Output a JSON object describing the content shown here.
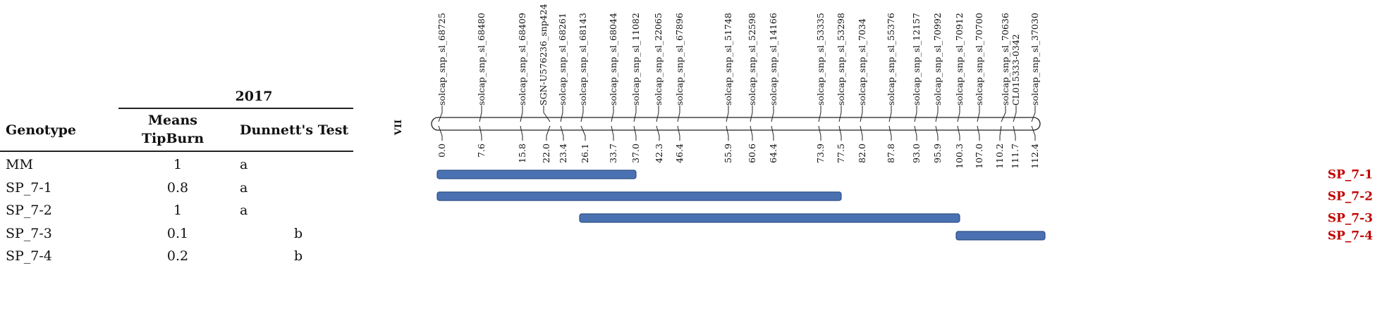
{
  "table": {
    "year": "2017",
    "headers": {
      "genotype": "Genotype",
      "means_line1": "Means",
      "means_line2": "TipBurn",
      "dunnett": "Dunnett's Test"
    },
    "rows": [
      {
        "genotype": "MM",
        "mean": "1",
        "dunnett": "a"
      },
      {
        "genotype": "SP_7-1",
        "mean": "0.8",
        "dunnett": "a"
      },
      {
        "genotype": "SP_7-2",
        "mean": "1",
        "dunnett": "a"
      },
      {
        "genotype": "SP_7-3",
        "mean": "0.1",
        "dunnett": "b"
      },
      {
        "genotype": "SP_7-4",
        "mean": "0.2",
        "dunnett": "b"
      }
    ]
  },
  "linkage_map": {
    "chromosome_label": "VII",
    "markers": [
      {
        "name": "solcap_snp_sl_68725",
        "pos": "0.0"
      },
      {
        "name": "solcap_snp_sl_68480",
        "pos": "7.6"
      },
      {
        "name": "solcap_snp_sl_68409",
        "pos": "15.8"
      },
      {
        "name": "SGN-U576236_snp424",
        "pos": "22.0"
      },
      {
        "name": "solcap_snp_sl_68261",
        "pos": "23.4"
      },
      {
        "name": "solcap_snp_sl_68143",
        "pos": "26.1"
      },
      {
        "name": "solcap_snp_sl_68044",
        "pos": "33.7"
      },
      {
        "name": "solcap_snp_sl_11082",
        "pos": "37.0"
      },
      {
        "name": "solcap_snp_sl_22065",
        "pos": "42.3"
      },
      {
        "name": "solcap_snp_sl_67896",
        "pos": "46.4"
      },
      {
        "name": "solcap_snp_sl_51748",
        "pos": "55.9"
      },
      {
        "name": "solcap_snp_sl_52598",
        "pos": "60.6"
      },
      {
        "name": "solcap_snp_sl_14166",
        "pos": "64.4"
      },
      {
        "name": "solcap_snp_sl_53335",
        "pos": "73.9"
      },
      {
        "name": "solcap_snp_sl_53298",
        "pos": "77.5"
      },
      {
        "name": "solcap_snp_sl_7034",
        "pos": "82.0"
      },
      {
        "name": "solcap_snp_sl_55376",
        "pos": "87.8"
      },
      {
        "name": "solcap_snp_sl_12157",
        "pos": "93.0"
      },
      {
        "name": "solcap_snp_sl_70992",
        "pos": "95.9"
      },
      {
        "name": "solcap_snp_sl_70912",
        "pos": "100.3"
      },
      {
        "name": "solcap_snp_sl_70700",
        "pos": "107.0"
      },
      {
        "name": "solcap_snp_sl_70636",
        "pos": "110.2"
      },
      {
        "name": "CL015333-0342",
        "pos": "111.7"
      },
      {
        "name": "solcap_snp_sl_37030",
        "pos": "112.4"
      }
    ],
    "introgressions": [
      {
        "label": "SP_7-1",
        "start_marker": 0,
        "end_marker": 7
      },
      {
        "label": "SP_7-2",
        "start_marker": 0,
        "end_marker": 14
      },
      {
        "label": "SP_7-3",
        "start_marker": 5,
        "end_marker": 19
      },
      {
        "label": "SP_7-4",
        "start_marker": 19,
        "end_marker": 23
      }
    ],
    "colors": {
      "bar_fill": "#4a72b2",
      "bar_stroke": "#2d4f86",
      "label_color": "#c00000",
      "line_color": "#222222"
    }
  }
}
